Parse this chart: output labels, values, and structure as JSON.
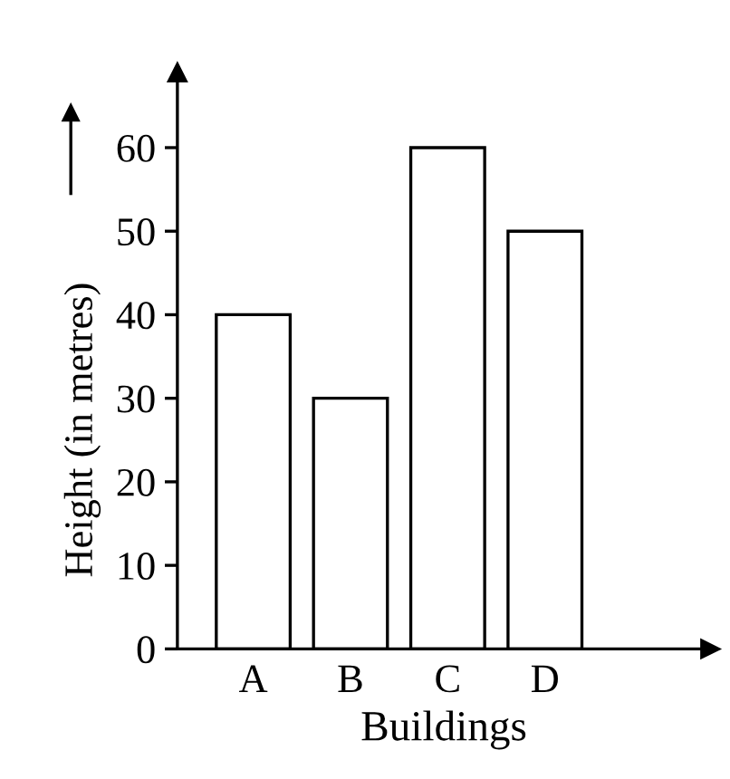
{
  "chart_data": {
    "type": "bar",
    "xlabel": "Buildings",
    "ylabel": "Height (in metres)",
    "categories": [
      "A",
      "B",
      "C",
      "D"
    ],
    "values": [
      40,
      30,
      60,
      50
    ],
    "color": "#ffffff",
    "ylim": [
      0,
      69
    ],
    "yticks": [
      0,
      10,
      20,
      30,
      40,
      50,
      60
    ],
    "grid": false
  }
}
